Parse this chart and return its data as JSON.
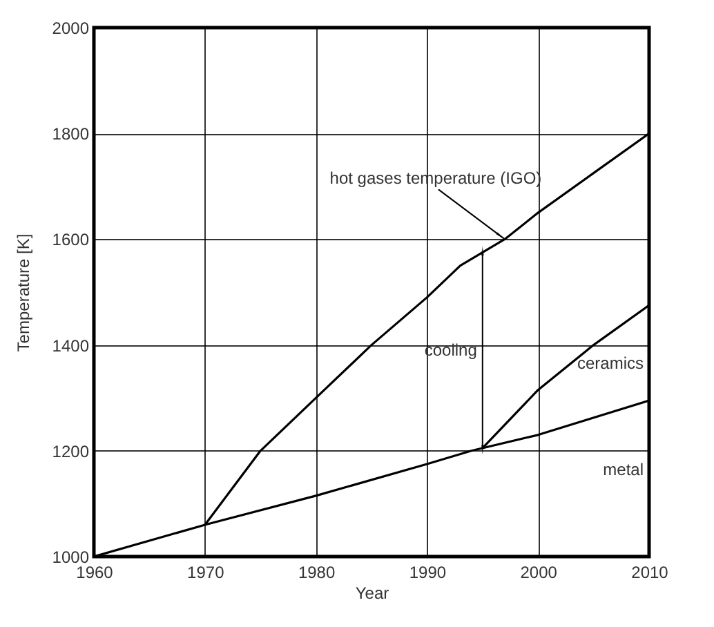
{
  "chart_data": {
    "type": "line",
    "xlabel": "Year",
    "ylabel": "Temperature [K]",
    "xlim": [
      1960,
      2010
    ],
    "xticks": [
      1960,
      1970,
      1980,
      1990,
      2000,
      2010
    ],
    "ylim": [
      1000,
      2000
    ],
    "yticks": [
      1000,
      1200,
      1400,
      1600,
      1800,
      2000
    ],
    "grid": true,
    "line_style": "solid",
    "series": [
      {
        "color": "#000000",
        "x": [
          1970,
          1975,
          1980,
          1985,
          1990,
          1993,
          1997,
          2000,
          2005,
          2010
        ],
        "values": [
          1060,
          1200,
          1300,
          1400,
          1490,
          1550,
          1600,
          1650,
          1725,
          1800
        ]
      },
      {
        "name": "ceramics",
        "color": "#000000",
        "x": [
          1995,
          2000,
          2005,
          2010
        ],
        "values": [
          1205,
          1315,
          1400,
          1475
        ]
      },
      {
        "name": "metal",
        "color": "#000000",
        "x": [
          1960,
          1970,
          1980,
          1990,
          1994,
          2000,
          2010
        ],
        "values": [
          1000,
          1060,
          1115,
          1175,
          1200,
          1230,
          1295
        ]
      }
    ],
    "annotations": [
      {
        "text": "hot gases temperature (IGO)",
        "x": 1997,
        "y": 1600
      },
      "cooling"
    ]
  }
}
